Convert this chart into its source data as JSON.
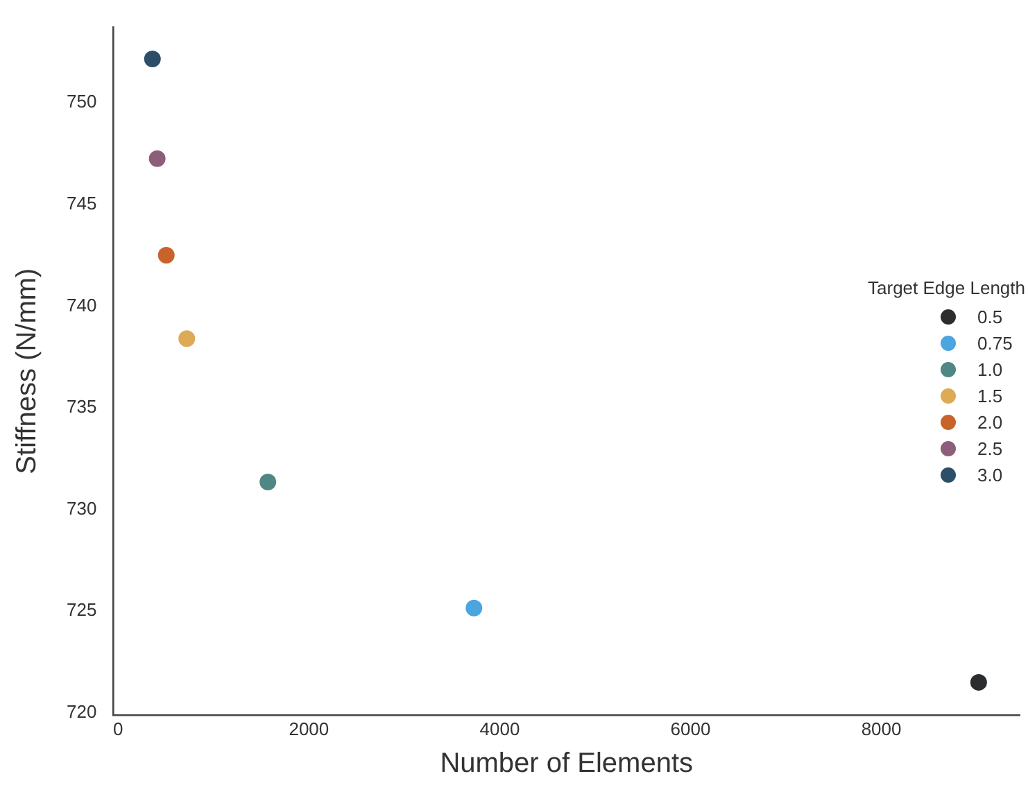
{
  "chart_data": {
    "type": "scatter",
    "xlabel": "Number of Elements",
    "ylabel": "Stiffness (N/mm)",
    "legend_title": "Target Edge Length",
    "legend": "right",
    "marker": "circle",
    "grid": false,
    "xlim": [
      -50,
      9450
    ],
    "xticks": [
      0,
      2000,
      4000,
      6000,
      8000
    ],
    "ylim": [
      719.9,
      753.7
    ],
    "yticks": [
      720,
      725,
      730,
      735,
      740,
      745,
      750
    ],
    "series": [
      {
        "name": "0.5",
        "color": "#2b2d2f",
        "x": [
          9020
        ],
        "values": [
          721.5
        ]
      },
      {
        "name": "0.75",
        "color": "#4aa5e0",
        "x": [
          3730
        ],
        "values": [
          725.15
        ]
      },
      {
        "name": "1.0",
        "color": "#4e8783",
        "x": [
          1570
        ],
        "values": [
          731.35
        ]
      },
      {
        "name": "1.5",
        "color": "#ddaa55",
        "x": [
          720
        ],
        "values": [
          738.4
        ]
      },
      {
        "name": "2.0",
        "color": "#c8642a",
        "x": [
          505
        ],
        "values": [
          742.5
        ]
      },
      {
        "name": "2.5",
        "color": "#8c5e7a",
        "x": [
          410
        ],
        "values": [
          747.25
        ]
      },
      {
        "name": "3.0",
        "color": "#2c4e68",
        "x": [
          360
        ],
        "values": [
          752.15
        ]
      }
    ]
  }
}
